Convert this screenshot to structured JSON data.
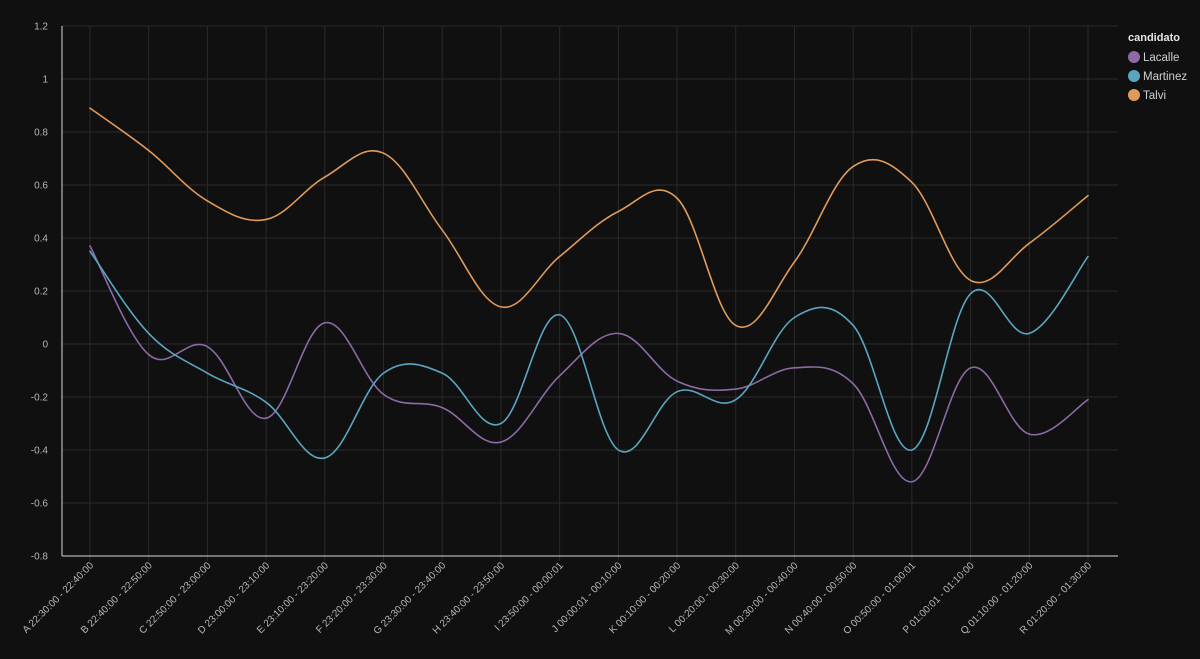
{
  "chart_data": {
    "type": "line",
    "interpolation": "smooth",
    "grid": true,
    "legend_position": "top-right",
    "ylim": [
      -0.8,
      1.2
    ],
    "yticks": [
      -0.8,
      -0.6,
      -0.4,
      -0.2,
      0,
      0.2,
      0.4,
      0.6,
      0.8,
      1,
      1.2
    ],
    "ytick_labels": [
      "-0.8",
      "-0.6",
      "-0.4",
      "-0.2",
      "0",
      "0.2",
      "0.4",
      "0.6",
      "0.8",
      "1",
      "1.2"
    ],
    "categories": [
      "A 22:30:00 - 22:40:00",
      "B 22:40:00 - 22:50:00",
      "C 22:50:00 - 23:00:00",
      "D 23:00:00 - 23:10:00",
      "E 23:10:00 - 23:20:00",
      "F 23:20:00 - 23:30:00",
      "G 23:30:00 - 23:40:00",
      "H 23:40:00 - 23:50:00",
      "I 23:50:00 - 00:00:01",
      "J 00:00:01 - 00:10:00",
      "K 00:10:00 - 00:20:00",
      "L 00:20:00 - 00:30:00",
      "M 00:30:00 - 00:40:00",
      "N 00:40:00 - 00:50:00",
      "O 00:50:00 - 01:00:01",
      "P 01:00:01 - 01:10:00",
      "Q 01:10:00 - 01:20:00",
      "R 01:20:00 - 01:30:00"
    ],
    "legend_title": "candidato",
    "series": [
      {
        "name": "Lacalle",
        "color": "#8b6aa5",
        "values": [
          0.37,
          -0.04,
          -0.01,
          -0.28,
          0.08,
          -0.19,
          -0.24,
          -0.37,
          -0.12,
          0.04,
          -0.14,
          -0.17,
          -0.09,
          -0.15,
          -0.52,
          -0.09,
          -0.34,
          -0.21
        ]
      },
      {
        "name": "Martinez",
        "color": "#5aa6c0",
        "values": [
          0.35,
          0.04,
          -0.11,
          -0.22,
          -0.43,
          -0.11,
          -0.11,
          -0.3,
          0.11,
          -0.4,
          -0.18,
          -0.21,
          0.1,
          0.07,
          -0.4,
          0.19,
          0.04,
          0.33
        ]
      },
      {
        "name": "Talvi",
        "color": "#e09a5a",
        "values": [
          0.89,
          0.73,
          0.54,
          0.47,
          0.63,
          0.72,
          0.43,
          0.14,
          0.33,
          0.5,
          0.55,
          0.07,
          0.31,
          0.67,
          0.61,
          0.24,
          0.38,
          0.56
        ]
      }
    ]
  }
}
